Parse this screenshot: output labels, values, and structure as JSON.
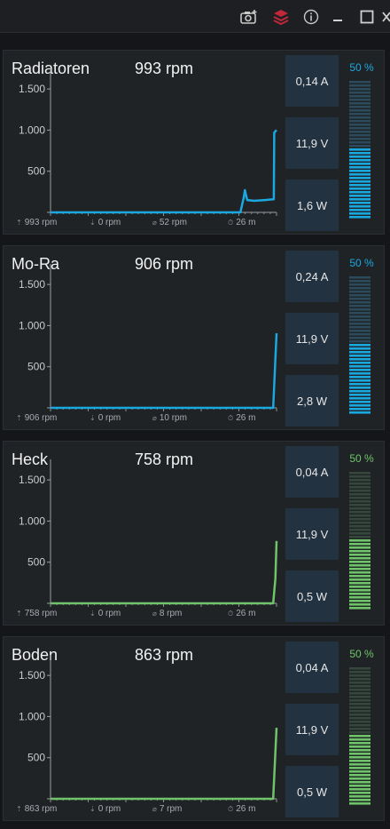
{
  "window": {
    "icons": [
      "camera-plus-icon",
      "layers-icon",
      "info-icon",
      "minimize-icon",
      "maximize-icon",
      "close-icon"
    ],
    "layers_color": "#c0283a"
  },
  "colors": {
    "blue": "#1aa8e0",
    "green": "#6fc46a"
  },
  "fans": [
    {
      "name": "Radiatoren",
      "rpm": "993 rpm",
      "current": "0,14 A",
      "voltage": "11,9 V",
      "power": "1,6 W",
      "percent_label": "50 %",
      "percent": 50,
      "color": "#1aa8e0",
      "dim_color": "#2b4a5c",
      "legend": {
        "max": "993 rpm",
        "min": "0 rpm",
        "avg": "52 rpm",
        "duration": "26 m"
      },
      "chart_data": {
        "type": "line",
        "y_ticks": [
          "1.500",
          "1.000",
          "500",
          ""
        ],
        "ylim": [
          0,
          1750
        ],
        "x": [
          0,
          0.84,
          0.855,
          0.86,
          0.87,
          0.9,
          0.95,
          0.985,
          0.988,
          0.99,
          1.0
        ],
        "y": [
          0,
          0,
          180,
          270,
          150,
          140,
          150,
          160,
          160,
          970,
          1000
        ]
      }
    },
    {
      "name": "Mo-Ra",
      "rpm": "906 rpm",
      "current": "0,24 A",
      "voltage": "11,9 V",
      "power": "2,8 W",
      "percent_label": "50 %",
      "percent": 50,
      "color": "#1aa8e0",
      "dim_color": "#2b4a5c",
      "legend": {
        "max": "906 rpm",
        "min": "0 rpm",
        "avg": "10 rpm",
        "duration": "26 m"
      },
      "chart_data": {
        "type": "line",
        "y_ticks": [
          "1.500",
          "1.000",
          "500",
          ""
        ],
        "ylim": [
          0,
          1750
        ],
        "x": [
          0,
          0.985,
          1.0
        ],
        "y": [
          0,
          0,
          906
        ]
      }
    },
    {
      "name": "Heck",
      "rpm": "758 rpm",
      "current": "0,04 A",
      "voltage": "11,9 V",
      "power": "0,5 W",
      "percent_label": "50 %",
      "percent": 50,
      "color": "#6fc46a",
      "dim_color": "#35463a",
      "legend": {
        "max": "758 rpm",
        "min": "0 rpm",
        "avg": "8 rpm",
        "duration": "26 m"
      },
      "chart_data": {
        "type": "line",
        "y_ticks": [
          "1.500",
          "1.000",
          "500",
          ""
        ],
        "ylim": [
          0,
          1750
        ],
        "x": [
          0,
          0.985,
          0.995,
          1.0
        ],
        "y": [
          0,
          0,
          300,
          758
        ]
      }
    },
    {
      "name": "Boden",
      "rpm": "863 rpm",
      "current": "0,04 A",
      "voltage": "11,9 V",
      "power": "0,5 W",
      "percent_label": "50 %",
      "percent": 50,
      "color": "#6fc46a",
      "dim_color": "#35463a",
      "legend": {
        "max": "863 rpm",
        "min": "0 rpm",
        "avg": "7 rpm",
        "duration": "26 m"
      },
      "chart_data": {
        "type": "line",
        "y_ticks": [
          "1.500",
          "1.000",
          "500",
          ""
        ],
        "ylim": [
          0,
          1750
        ],
        "x": [
          0,
          0.985,
          1.0
        ],
        "y": [
          0,
          0,
          863
        ]
      }
    }
  ]
}
